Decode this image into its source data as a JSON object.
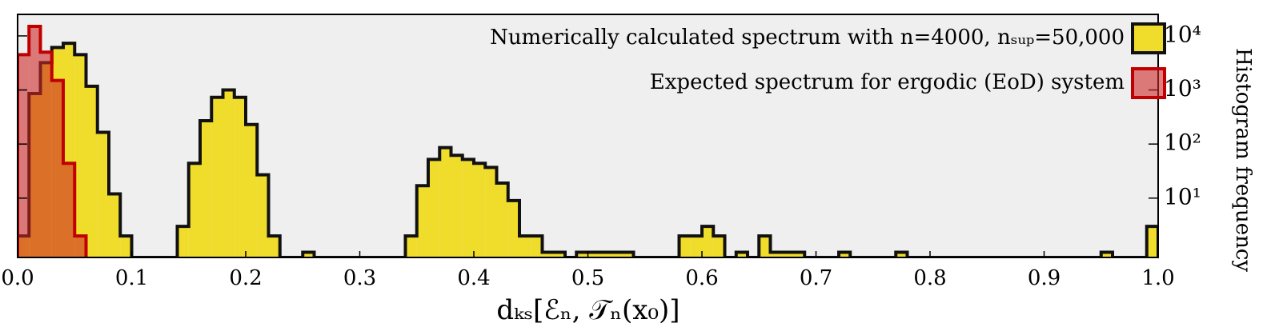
{
  "chart_data": {
    "type": "histogram",
    "x_label": "dₖₛ[ℰₙ, 𝒯ₙ(x₀)]",
    "y_label": "Histogram frequency",
    "xlim": [
      0,
      1
    ],
    "xticks": [
      {
        "value": 0,
        "label": "0.0"
      },
      0.1,
      0.2,
      0.3,
      0.4,
      0.5,
      0.6,
      0.7,
      0.8,
      0.9,
      {
        "value": 1,
        "label": "1.0"
      }
    ],
    "ylim": [
      0.8,
      25000
    ],
    "y_log": true,
    "yticks": [
      {
        "value": 10,
        "label": "10¹"
      },
      {
        "value": 100,
        "label": "10²"
      },
      {
        "value": 1000,
        "label": "10³"
      },
      {
        "value": 10000,
        "label": "10⁴"
      }
    ],
    "legend": "upper right",
    "series": [
      {
        "name": "Numerically calculated spectrum with n=4000, nₛᵤₚ=50,000",
        "color": "#f0dc2a",
        "edge": "#111111",
        "bins": [
          0,
          0.01,
          0.02,
          0.03,
          0.04,
          0.05,
          0.06,
          0.07,
          0.08,
          0.09,
          0.1,
          0.11,
          0.12,
          0.13,
          0.14,
          0.15,
          0.16,
          0.17,
          0.18,
          0.19,
          0.2,
          0.21,
          0.22,
          0.23,
          0.24,
          0.25,
          0.26,
          0.27,
          0.28,
          0.29,
          0.3,
          0.31,
          0.32,
          0.33,
          0.34,
          0.35,
          0.36,
          0.37,
          0.38,
          0.39,
          0.4,
          0.41,
          0.42,
          0.43,
          0.44,
          0.45,
          0.46,
          0.47,
          0.48,
          0.49,
          0.5,
          0.51,
          0.52,
          0.53,
          0.54,
          0.55,
          0.56,
          0.57,
          0.58,
          0.59,
          0.6,
          0.61,
          0.62,
          0.63,
          0.64,
          0.65,
          0.66,
          0.67,
          0.68,
          0.69,
          0.7,
          0.71,
          0.72,
          0.73,
          0.74,
          0.75,
          0.76,
          0.77,
          0.78,
          0.79,
          0.8,
          0.81,
          0.82,
          0.83,
          0.84,
          0.85,
          0.86,
          0.87,
          0.88,
          0.89,
          0.9,
          0.91,
          0.92,
          0.93,
          0.94,
          0.95,
          0.96,
          0.97,
          0.98,
          0.99,
          1
        ],
        "values": [
          2,
          860,
          3200,
          6100,
          7300,
          4500,
          1170,
          165,
          12,
          2,
          0,
          0,
          0,
          0,
          3,
          44,
          270,
          730,
          1000,
          730,
          230,
          27,
          2,
          0,
          0,
          1,
          0,
          0,
          0,
          0,
          0,
          0,
          0,
          0,
          2,
          17,
          52,
          86,
          62,
          52,
          44,
          37,
          19,
          9,
          2,
          2,
          1,
          1,
          0,
          1,
          1,
          1,
          1,
          1,
          0,
          0,
          0,
          0,
          2,
          2,
          3,
          2,
          0,
          1,
          0,
          2,
          1,
          1,
          1,
          0,
          0,
          0,
          1,
          0,
          0,
          0,
          0,
          1,
          0,
          0,
          0,
          0,
          0,
          0,
          0,
          0,
          0,
          0,
          0,
          0,
          0,
          0,
          0,
          0,
          0,
          1,
          0,
          0,
          0,
          3
        ]
      },
      {
        "name": "Expected spectrum for ergodic (EoD) system",
        "color": "rgba(205,40,40,0.6)",
        "edge": "#c00000",
        "bins": [
          0,
          0.01,
          0.02,
          0.03,
          0.04,
          0.05,
          0.06
        ],
        "values": [
          4500,
          15000,
          5000,
          1500,
          44,
          2
        ]
      }
    ]
  }
}
